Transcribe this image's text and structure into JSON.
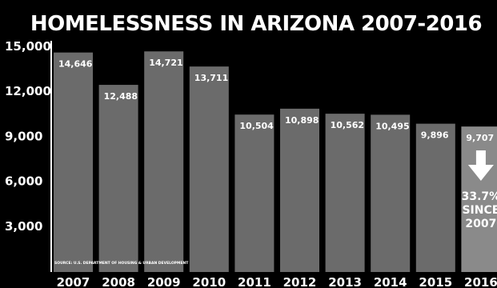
{
  "chart_data": {
    "type": "bar",
    "title": "HOMELESSNESS IN ARIZONA 2007-2016",
    "categories": [
      "2007",
      "2008",
      "2009",
      "2010",
      "2011",
      "2012",
      "2013",
      "2014",
      "2015",
      "2016"
    ],
    "values": [
      14646,
      12488,
      14721,
      13711,
      10504,
      10898,
      10562,
      10495,
      9896,
      9707
    ],
    "value_labels": [
      "14,646",
      "12,488",
      "14,721",
      "13,711",
      "10,504",
      "10,898",
      "10,562",
      "10,495",
      "9,896",
      "9,707"
    ],
    "yticks": [
      3000,
      6000,
      9000,
      12000,
      15000
    ],
    "ytick_labels": [
      "3,000",
      "6,000",
      "9,000",
      "12,000",
      "15,000"
    ],
    "ylim": [
      0,
      15000
    ],
    "grid": false,
    "annotation": {
      "lines": [
        "33.7%",
        "SINCE",
        "2007"
      ],
      "arrow": "down-arrow-icon"
    },
    "source": "SOURCE: U.S. DEPARTMENT OF HOUSING & URBAN DEVELOPMENT",
    "colors": {
      "background": "#000000",
      "bar": "#6b6b6b",
      "last_bar": "#8a8a8a",
      "text": "#ffffff",
      "axis": "#ffffff"
    }
  }
}
